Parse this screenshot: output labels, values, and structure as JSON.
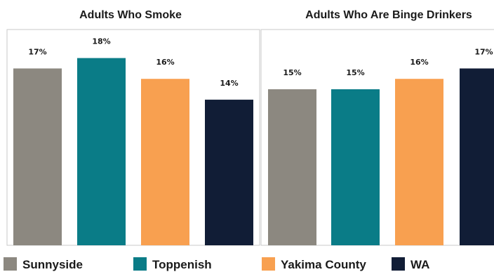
{
  "chart_data": [
    {
      "type": "bar",
      "title": "Adults Who Smoke",
      "categories": [
        "Sunnyside",
        "Toppenish",
        "Yakima County",
        "WA"
      ],
      "values": [
        17,
        18,
        16,
        14
      ],
      "labels": [
        "17%",
        "18%",
        "16%",
        "14%"
      ],
      "ylim": [
        0,
        20
      ],
      "grid": false
    },
    {
      "type": "bar",
      "title": "Adults Who Are Binge Drinkers",
      "categories": [
        "Sunnyside",
        "Toppenish",
        "Yakima County",
        "WA"
      ],
      "values": [
        15,
        15,
        16,
        17
      ],
      "labels": [
        "15%",
        "15%",
        "16%",
        "17%"
      ],
      "ylim": [
        0,
        20
      ],
      "grid": false
    }
  ],
  "legend": {
    "placement": "bottom",
    "items": [
      {
        "label": "Sunnyside",
        "color": "#8c8880"
      },
      {
        "label": "Toppenish",
        "color": "#0a7c87"
      },
      {
        "label": "Yakima County",
        "color": "#f8a050"
      },
      {
        "label": "WA",
        "color": "#111d36"
      }
    ]
  },
  "colors": {
    "panel_border": "#c9c9c9",
    "text": "#1a1a1a"
  }
}
